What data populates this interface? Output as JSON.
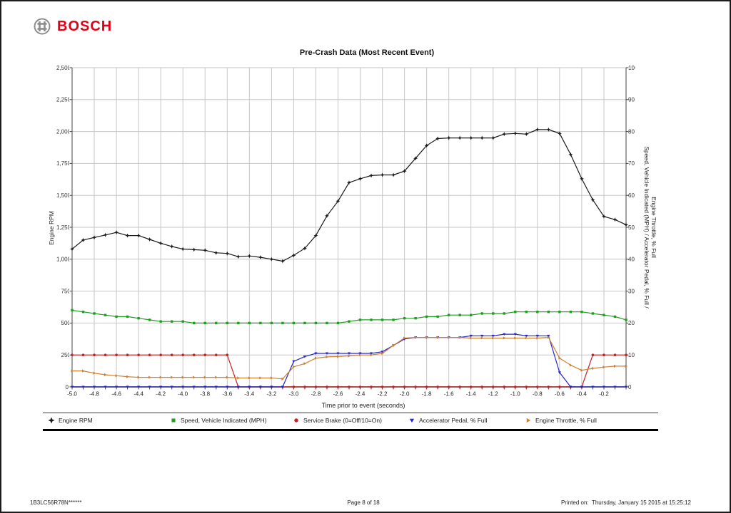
{
  "brand": {
    "logo_text": "BOSCH",
    "logo_color": "#e30015"
  },
  "title": "Pre-Crash Data (Most Recent Event)",
  "chart_data": {
    "type": "line",
    "xlabel": "Time prior to event (seconds)",
    "x_range": [
      -5.0,
      0.0
    ],
    "x_tick_step_labeled": 0.2,
    "x_tick_step_minor": 0.1,
    "grid": true,
    "x": [
      -5.0,
      -4.9,
      -4.8,
      -4.7,
      -4.6,
      -4.5,
      -4.4,
      -4.3,
      -4.2,
      -4.1,
      -4.0,
      -3.9,
      -3.8,
      -3.7,
      -3.6,
      -3.5,
      -3.4,
      -3.3,
      -3.2,
      -3.1,
      -3.0,
      -2.9,
      -2.8,
      -2.7,
      -2.6,
      -2.5,
      -2.4,
      -2.3,
      -2.2,
      -2.1,
      -2.0,
      -1.9,
      -1.8,
      -1.7,
      -1.6,
      -1.5,
      -1.4,
      -1.3,
      -1.2,
      -1.1,
      -1.0,
      -0.9,
      -0.8,
      -0.7,
      -0.6,
      -0.5,
      -0.4,
      -0.3,
      -0.2,
      -0.1,
      0.0
    ],
    "left_axis": {
      "label": "Engine RPM",
      "range": [
        0,
        2500
      ],
      "tick_step": 250,
      "ticks": [
        0,
        250,
        500,
        750,
        1000,
        1250,
        1500,
        1750,
        2000,
        2250,
        2500
      ]
    },
    "right_axis": {
      "label_line1": "Speed, Vehicle Indicated (MPH) / Accelerator Pedal, % Full /",
      "label_line2": "Engine Throttle, % Full",
      "range": [
        0,
        100
      ],
      "tick_step": 10,
      "ticks": [
        0,
        10,
        20,
        30,
        40,
        50,
        60,
        70,
        80,
        90,
        100
      ]
    },
    "series": [
      {
        "name": "Engine RPM",
        "axis": "left",
        "color": "#1a1a1a",
        "marker": "star",
        "values": [
          1080,
          1150,
          1170,
          1190,
          1210,
          1185,
          1185,
          1155,
          1125,
          1100,
          1080,
          1075,
          1070,
          1050,
          1045,
          1020,
          1025,
          1015,
          1000,
          985,
          1030,
          1085,
          1185,
          1340,
          1455,
          1600,
          1630,
          1655,
          1660,
          1660,
          1690,
          1790,
          1890,
          1945,
          1950,
          1950,
          1950,
          1950,
          1950,
          1980,
          1985,
          1980,
          2015,
          2015,
          1985,
          1820,
          1630,
          1465,
          1335,
          1310,
          1270
        ]
      },
      {
        "name": "Speed, Vehicle Indicated (MPH)",
        "axis": "right",
        "color": "#1f9e1f",
        "marker": "square",
        "values": [
          24,
          23.5,
          23,
          22.5,
          22,
          22,
          21.5,
          21,
          20.5,
          20.5,
          20.5,
          20,
          20,
          20,
          20,
          20,
          20,
          20,
          20,
          20,
          20,
          20,
          20,
          20,
          20,
          20.5,
          21,
          21,
          21,
          21,
          21.5,
          21.5,
          22,
          22,
          22.5,
          22.5,
          22.5,
          23,
          23,
          23,
          23.5,
          23.5,
          23.5,
          23.5,
          23.5,
          23.5,
          23.5,
          23,
          22.5,
          22,
          21
        ]
      },
      {
        "name": "Service Brake (0=Off/10=On)",
        "axis": "right",
        "color": "#cc2020",
        "marker": "circle",
        "values": [
          10,
          10,
          10,
          10,
          10,
          10,
          10,
          10,
          10,
          10,
          10,
          10,
          10,
          10,
          10,
          0,
          0,
          0,
          0,
          0,
          0,
          0,
          0,
          0,
          0,
          0,
          0,
          0,
          0,
          0,
          0,
          0,
          0,
          0,
          0,
          0,
          0,
          0,
          0,
          0,
          0,
          0,
          0,
          0,
          0,
          0,
          0,
          10,
          10,
          10,
          10
        ]
      },
      {
        "name": "Accelerator Pedal, % Full",
        "axis": "right",
        "color": "#2626cc",
        "marker": "triangle-down",
        "values": [
          0,
          0,
          0,
          0,
          0,
          0,
          0,
          0,
          0,
          0,
          0,
          0,
          0,
          0,
          0,
          0,
          0,
          0,
          0,
          0,
          8,
          9.5,
          10.5,
          10.5,
          10.5,
          10.5,
          10.5,
          10.5,
          11,
          13,
          15,
          15.5,
          15.5,
          15.5,
          15.5,
          15.5,
          16,
          16,
          16,
          16.5,
          16.5,
          16,
          16,
          16,
          4.5,
          0,
          0,
          0,
          0,
          0,
          0
        ]
      },
      {
        "name": "Engine Throttle, % Full",
        "axis": "right",
        "color": "#cc8033",
        "marker": "triangle-right",
        "values": [
          5,
          5,
          4.3,
          3.8,
          3.5,
          3.2,
          3,
          3,
          3,
          3,
          3,
          3,
          3,
          3,
          3,
          2.8,
          2.8,
          2.8,
          2.8,
          2.5,
          6.3,
          7.3,
          9,
          9.4,
          9.5,
          9.7,
          10,
          10,
          10.5,
          13,
          15.3,
          15.5,
          15.5,
          15.5,
          15.5,
          15.5,
          15.3,
          15.3,
          15.3,
          15.3,
          15.3,
          15.3,
          15.3,
          15.5,
          9,
          6.8,
          5.2,
          5.8,
          6.2,
          6.5,
          6.5
        ]
      }
    ]
  },
  "footer": {
    "left": "1B3LC56R78N******",
    "center": "Page 8 of 18",
    "right": "Printed on:  Thursday, January 15 2015 at 15:25:12"
  }
}
